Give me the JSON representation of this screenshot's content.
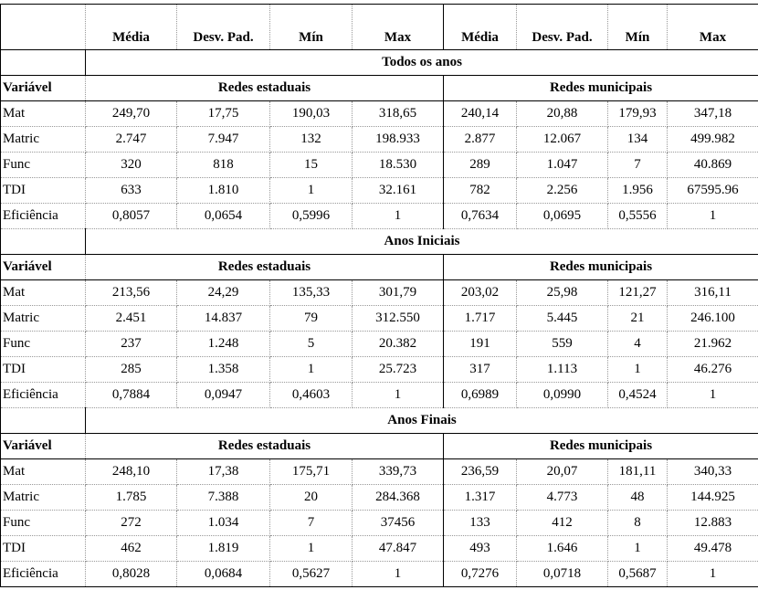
{
  "header": {
    "columns": [
      "Média",
      "Desv. Pad.",
      "Mín",
      "Max",
      "Média",
      "Desv. Pad.",
      "Mín",
      "Max"
    ]
  },
  "sections": [
    {
      "title": "Todos os anos",
      "label": "Variável",
      "groups": [
        "Redes estaduais",
        "Redes municipais"
      ],
      "rows": [
        {
          "label": "Mat",
          "values": [
            "249,70",
            "17,75",
            "190,03",
            "318,65",
            "240,14",
            "20,88",
            "179,93",
            "347,18"
          ]
        },
        {
          "label": "Matric",
          "values": [
            "2.747",
            "7.947",
            "132",
            "198.933",
            "2.877",
            "12.067",
            "134",
            "499.982"
          ]
        },
        {
          "label": "Func",
          "values": [
            "320",
            "818",
            "15",
            "18.530",
            "289",
            "1.047",
            "7",
            "40.869"
          ]
        },
        {
          "label": "TDI",
          "values": [
            "633",
            "1.810",
            "1",
            "32.161",
            "782",
            "2.256",
            "1.956",
            "67595.96"
          ]
        },
        {
          "label": "Eficiência",
          "values": [
            "0,8057",
            "0,0654",
            "0,5996",
            "1",
            "0,7634",
            "0,0695",
            "0,5556",
            "1"
          ]
        }
      ]
    },
    {
      "title": "Anos Iniciais",
      "label": "Variável",
      "groups": [
        "Redes estaduais",
        "Redes municipais"
      ],
      "rows": [
        {
          "label": "Mat",
          "values": [
            "213,56",
            "24,29",
            "135,33",
            "301,79",
            "203,02",
            "25,98",
            "121,27",
            "316,11"
          ]
        },
        {
          "label": "Matric",
          "values": [
            "2.451",
            "14.837",
            "79",
            "312.550",
            "1.717",
            "5.445",
            "21",
            "246.100"
          ]
        },
        {
          "label": "Func",
          "values": [
            "237",
            "1.248",
            "5",
            "20.382",
            "191",
            "559",
            "4",
            "21.962"
          ]
        },
        {
          "label": "TDI",
          "values": [
            "285",
            "1.358",
            "1",
            "25.723",
            "317",
            "1.113",
            "1",
            "46.276"
          ]
        },
        {
          "label": "Eficiência",
          "values": [
            "0,7884",
            "0,0947",
            "0,4603",
            "1",
            "0,6989",
            "0,0990",
            "0,4524",
            "1"
          ]
        }
      ]
    },
    {
      "title": "Anos Finais",
      "label": "Variável",
      "groups": [
        "Redes estaduais",
        "Redes municipais"
      ],
      "rows": [
        {
          "label": "Mat",
          "values": [
            "248,10",
            "17,38",
            "175,71",
            "339,73",
            "236,59",
            "20,07",
            "181,11",
            "340,33"
          ]
        },
        {
          "label": "Matric",
          "values": [
            "1.785",
            "7.388",
            "20",
            "284.368",
            "1.317",
            "4.773",
            "48",
            "144.925"
          ]
        },
        {
          "label": "Func",
          "values": [
            "272",
            "1.034",
            "7",
            "37456",
            "133",
            "412",
            "8",
            "12.883"
          ]
        },
        {
          "label": "TDI",
          "values": [
            "462",
            "1.819",
            "1",
            "47.847",
            "493",
            "1.646",
            "1",
            "49.478"
          ]
        },
        {
          "label": "Eficiência",
          "values": [
            "0,8028",
            "0,0684",
            "0,5627",
            "1",
            "0,7276",
            "0,0718",
            "0,5687",
            "1"
          ]
        }
      ]
    }
  ]
}
